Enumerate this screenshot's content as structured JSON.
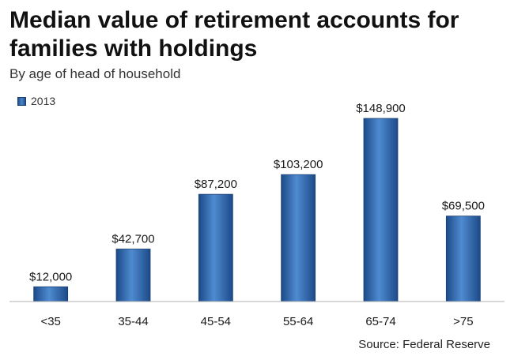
{
  "title": "Median value of retirement accounts for families with holdings",
  "subtitle": "By age of head of household",
  "source": "Source: Federal Reserve",
  "chart_data": {
    "type": "bar",
    "categories": [
      "<35",
      "35-44",
      "45-54",
      "55-64",
      "65-74",
      ">75"
    ],
    "series": [
      {
        "name": "2013",
        "values": [
          12000,
          42700,
          87200,
          103200,
          148900,
          69500
        ]
      }
    ],
    "data_labels": [
      "$12,000",
      "$42,700",
      "$87,200",
      "$103,200",
      "$148,900",
      "$69,500"
    ],
    "ylim": [
      0,
      160000
    ],
    "grid": false,
    "legend_position": "top-left",
    "bar_color": "#3a72b8"
  }
}
